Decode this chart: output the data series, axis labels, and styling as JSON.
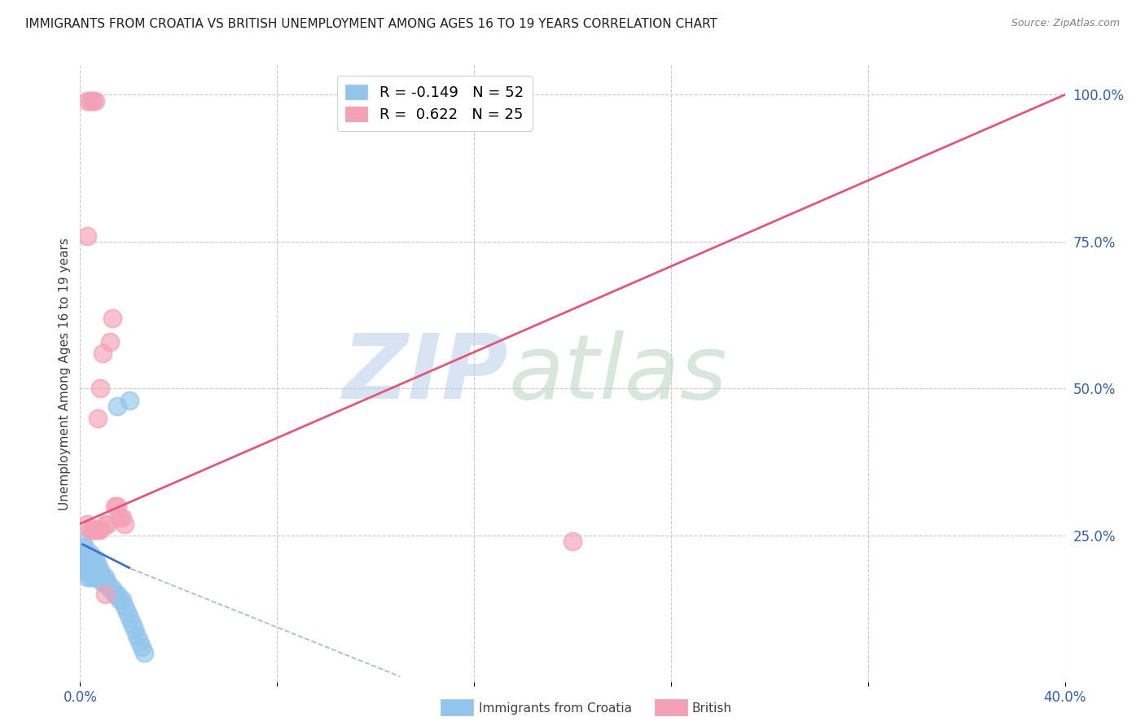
{
  "title": "IMMIGRANTS FROM CROATIA VS BRITISH UNEMPLOYMENT AMONG AGES 16 TO 19 YEARS CORRELATION CHART",
  "source": "Source: ZipAtlas.com",
  "ylabel": "Unemployment Among Ages 16 to 19 years",
  "xlim": [
    0.0,
    0.4
  ],
  "ylim": [
    0.0,
    1.05
  ],
  "xticks": [
    0.0,
    0.08,
    0.16,
    0.24,
    0.32,
    0.4
  ],
  "xticklabels": [
    "0.0%",
    "",
    "",
    "",
    "",
    "40.0%"
  ],
  "yticks_right": [
    0.25,
    0.5,
    0.75,
    1.0
  ],
  "ytick_right_labels": [
    "25.0%",
    "50.0%",
    "75.0%",
    "100.0%"
  ],
  "blue_R": -0.149,
  "blue_N": 52,
  "pink_R": 0.622,
  "pink_N": 25,
  "blue_color": "#92C5EC",
  "pink_color": "#F4A0B5",
  "blue_line_color": "#4070C8",
  "pink_line_color": "#E05878",
  "title_fontsize": 11,
  "axis_label_fontsize": 11,
  "tick_fontsize": 12,
  "legend_fontsize": 13,
  "blue_scatter_x": [
    0.001,
    0.001,
    0.002,
    0.002,
    0.002,
    0.002,
    0.003,
    0.003,
    0.003,
    0.003,
    0.003,
    0.003,
    0.004,
    0.004,
    0.004,
    0.004,
    0.004,
    0.005,
    0.005,
    0.005,
    0.005,
    0.006,
    0.006,
    0.006,
    0.006,
    0.007,
    0.007,
    0.007,
    0.008,
    0.008,
    0.009,
    0.009,
    0.01,
    0.01,
    0.011,
    0.012,
    0.013,
    0.014,
    0.015,
    0.016,
    0.017,
    0.018,
    0.019,
    0.02,
    0.021,
    0.022,
    0.023,
    0.024,
    0.025,
    0.026,
    0.015,
    0.02
  ],
  "blue_scatter_y": [
    0.21,
    0.24,
    0.2,
    0.22,
    0.19,
    0.23,
    0.2,
    0.21,
    0.19,
    0.22,
    0.18,
    0.2,
    0.19,
    0.21,
    0.18,
    0.2,
    0.22,
    0.19,
    0.2,
    0.18,
    0.21,
    0.19,
    0.2,
    0.18,
    0.21,
    0.19,
    0.18,
    0.2,
    0.19,
    0.18,
    0.18,
    0.17,
    0.17,
    0.18,
    0.17,
    0.16,
    0.16,
    0.15,
    0.15,
    0.14,
    0.14,
    0.13,
    0.12,
    0.11,
    0.1,
    0.09,
    0.08,
    0.07,
    0.06,
    0.05,
    0.47,
    0.48
  ],
  "pink_scatter_x": [
    0.003,
    0.004,
    0.005,
    0.006,
    0.007,
    0.008,
    0.009,
    0.01,
    0.011,
    0.012,
    0.013,
    0.014,
    0.015,
    0.016,
    0.017,
    0.018,
    0.003,
    0.004,
    0.005,
    0.006,
    0.007,
    0.008,
    0.01,
    0.2,
    0.003
  ],
  "pink_scatter_y": [
    0.99,
    0.99,
    0.99,
    0.99,
    0.45,
    0.5,
    0.56,
    0.27,
    0.27,
    0.58,
    0.62,
    0.3,
    0.3,
    0.28,
    0.28,
    0.27,
    0.27,
    0.26,
    0.26,
    0.26,
    0.26,
    0.26,
    0.15,
    0.24,
    0.76
  ],
  "pink_line_x0": 0.0,
  "pink_line_y0": 0.27,
  "pink_line_x1": 0.4,
  "pink_line_y1": 1.0,
  "blue_line_solid_x0": 0.001,
  "blue_line_solid_y0": 0.235,
  "blue_line_solid_x1": 0.02,
  "blue_line_solid_y1": 0.195,
  "blue_line_dash_x0": 0.018,
  "blue_line_dash_y0": 0.198,
  "blue_line_dash_x1": 0.13,
  "blue_line_dash_y1": 0.01
}
